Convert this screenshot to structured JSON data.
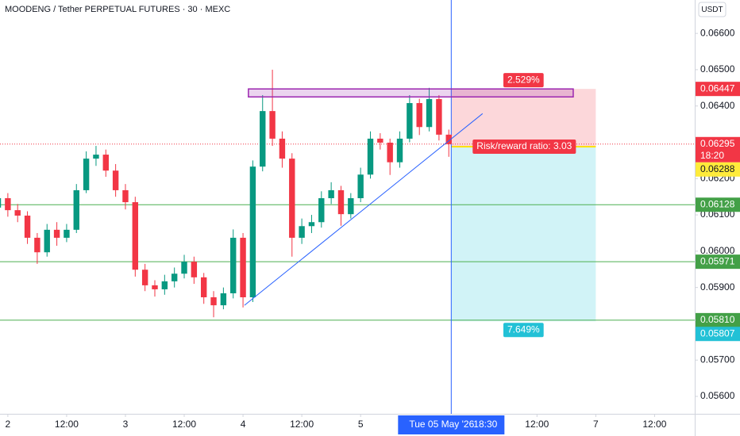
{
  "header": {
    "title": "MOODENG / Tether PERPETUAL FUTURES · 30 · MEXC",
    "currency": "USDT"
  },
  "chart_data": {
    "type": "candlestick",
    "x": [
      -2,
      0,
      2,
      4,
      6,
      8,
      10,
      12,
      14,
      16,
      18,
      20,
      22,
      24,
      26,
      28,
      30,
      32,
      34,
      36,
      38,
      40,
      42,
      44,
      46,
      48,
      50,
      52,
      54,
      56,
      58,
      60,
      62,
      64,
      66,
      68,
      70,
      72,
      74,
      76,
      78,
      80,
      82,
      84,
      86,
      88,
      90
    ],
    "open": [
      0.0612,
      0.06146,
      0.06113,
      0.06098,
      0.06037,
      0.05997,
      0.06059,
      0.06037,
      0.06059,
      0.06168,
      0.06255,
      0.06266,
      0.06222,
      0.06168,
      0.06135,
      0.05949,
      0.05906,
      0.05895,
      0.05917,
      0.05938,
      0.05971,
      0.05928,
      0.05873,
      0.05851,
      0.05884,
      0.06037,
      0.05873,
      0.06233,
      0.06386,
      0.0631,
      0.06255,
      0.06037,
      0.06069,
      0.0608,
      0.06146,
      0.06168,
      0.06102,
      0.06146,
      0.06211,
      0.0631,
      0.06299,
      0.06245,
      0.0631,
      0.06408,
      0.06342,
      0.06419,
      0.06321
    ],
    "high": [
      0.06165,
      0.0616,
      0.0613,
      0.0611,
      0.0605,
      0.06075,
      0.0608,
      0.06075,
      0.06185,
      0.06275,
      0.0629,
      0.0628,
      0.0624,
      0.06185,
      0.0615,
      0.05965,
      0.0592,
      0.05935,
      0.05955,
      0.0599,
      0.05985,
      0.0594,
      0.0589,
      0.059,
      0.0606,
      0.0605,
      0.0625,
      0.0643,
      0.065,
      0.0633,
      0.0627,
      0.0609,
      0.061,
      0.06165,
      0.0619,
      0.0618,
      0.0616,
      0.0623,
      0.0633,
      0.06325,
      0.0631,
      0.0633,
      0.0643,
      0.0642,
      0.0645,
      0.0643,
      0.06335
    ],
    "low": [
      0.06105,
      0.06095,
      0.0608,
      0.0602,
      0.05965,
      0.05985,
      0.06015,
      0.06025,
      0.0605,
      0.0616,
      0.06235,
      0.06205,
      0.0615,
      0.06115,
      0.0593,
      0.0589,
      0.05875,
      0.0588,
      0.059,
      0.05925,
      0.0591,
      0.05855,
      0.05818,
      0.0584,
      0.0587,
      0.05845,
      0.0586,
      0.0622,
      0.0629,
      0.0623,
      0.05985,
      0.0602,
      0.0605,
      0.06065,
      0.0613,
      0.0607,
      0.0609,
      0.06135,
      0.062,
      0.0628,
      0.0621,
      0.0623,
      0.063,
      0.0632,
      0.0633,
      0.06305,
      0.0626
    ],
    "close": [
      0.06146,
      0.06113,
      0.06098,
      0.06037,
      0.05997,
      0.06059,
      0.06037,
      0.06059,
      0.06168,
      0.06255,
      0.06266,
      0.06222,
      0.06168,
      0.06135,
      0.05949,
      0.05906,
      0.05895,
      0.05917,
      0.05938,
      0.05971,
      0.05928,
      0.05873,
      0.05851,
      0.05884,
      0.06037,
      0.05873,
      0.06233,
      0.06386,
      0.0631,
      0.06255,
      0.06037,
      0.06069,
      0.0608,
      0.06146,
      0.06168,
      0.06102,
      0.06146,
      0.06211,
      0.0631,
      0.06299,
      0.06245,
      0.0631,
      0.06408,
      0.06342,
      0.06419,
      0.06321,
      0.06295
    ],
    "up_color": "#089981",
    "down_color": "#f23645",
    "xlim": [
      -1.6,
      140.2
    ],
    "ylim": [
      0.05552,
      0.06692
    ],
    "yticks": [
      {
        "value": 0.056,
        "label": "0.05600"
      },
      {
        "value": 0.057,
        "label": "0.05700"
      },
      {
        "value": 0.058,
        "label": "0.05800"
      },
      {
        "value": 0.059,
        "label": "0.05900"
      },
      {
        "value": 0.06,
        "label": "0.06000"
      },
      {
        "value": 0.061,
        "label": "0.06100"
      },
      {
        "value": 0.062,
        "label": "0.06200"
      },
      {
        "value": 0.063,
        "label": "0.06300"
      },
      {
        "value": 0.064,
        "label": "0.06400"
      },
      {
        "value": 0.065,
        "label": "0.06500"
      },
      {
        "value": 0.066,
        "label": "0.06600"
      }
    ],
    "xticks": [
      {
        "value": 0,
        "label": "2"
      },
      {
        "value": 12,
        "label": "12:00"
      },
      {
        "value": 24,
        "label": "3"
      },
      {
        "value": 36,
        "label": "12:00"
      },
      {
        "value": 48,
        "label": "4"
      },
      {
        "value": 60,
        "label": "12:00"
      },
      {
        "value": 72,
        "label": "5"
      },
      {
        "value": 108,
        "label": "12:00"
      },
      {
        "value": 120,
        "label": "7"
      },
      {
        "value": 132,
        "label": "12:00"
      }
    ],
    "crosshair": {
      "x": 90.5,
      "date": "Tue 05 May '26",
      "time": "18:30"
    },
    "levels": [
      {
        "value": 0.06128,
        "color": "#4caf50"
      },
      {
        "value": 0.05971,
        "color": "#4caf50"
      },
      {
        "value": 0.0581,
        "label": "0.05810",
        "color": "#4caf50"
      }
    ],
    "current_price": {
      "value": 0.06295,
      "countdown": "18:20",
      "color": "#f23645"
    },
    "zone": {
      "top": 0.06447,
      "bottom": 0.06425,
      "x_start": 49.1,
      "x_end": 115.4,
      "color": "#9c27b0"
    },
    "trendline": {
      "x": [
        48.3,
        96.9
      ],
      "y": [
        0.05851,
        0.06379
      ],
      "color": "#2962ff"
    },
    "position": {
      "x_start": 90.5,
      "x_end": 120,
      "stop": 0.06447,
      "entry": 0.06288,
      "target": 0.05807,
      "risk_label": "2.529%",
      "ratio_label": "Risk/reward ratio: 3.03",
      "reward_label": "7.649%"
    }
  }
}
